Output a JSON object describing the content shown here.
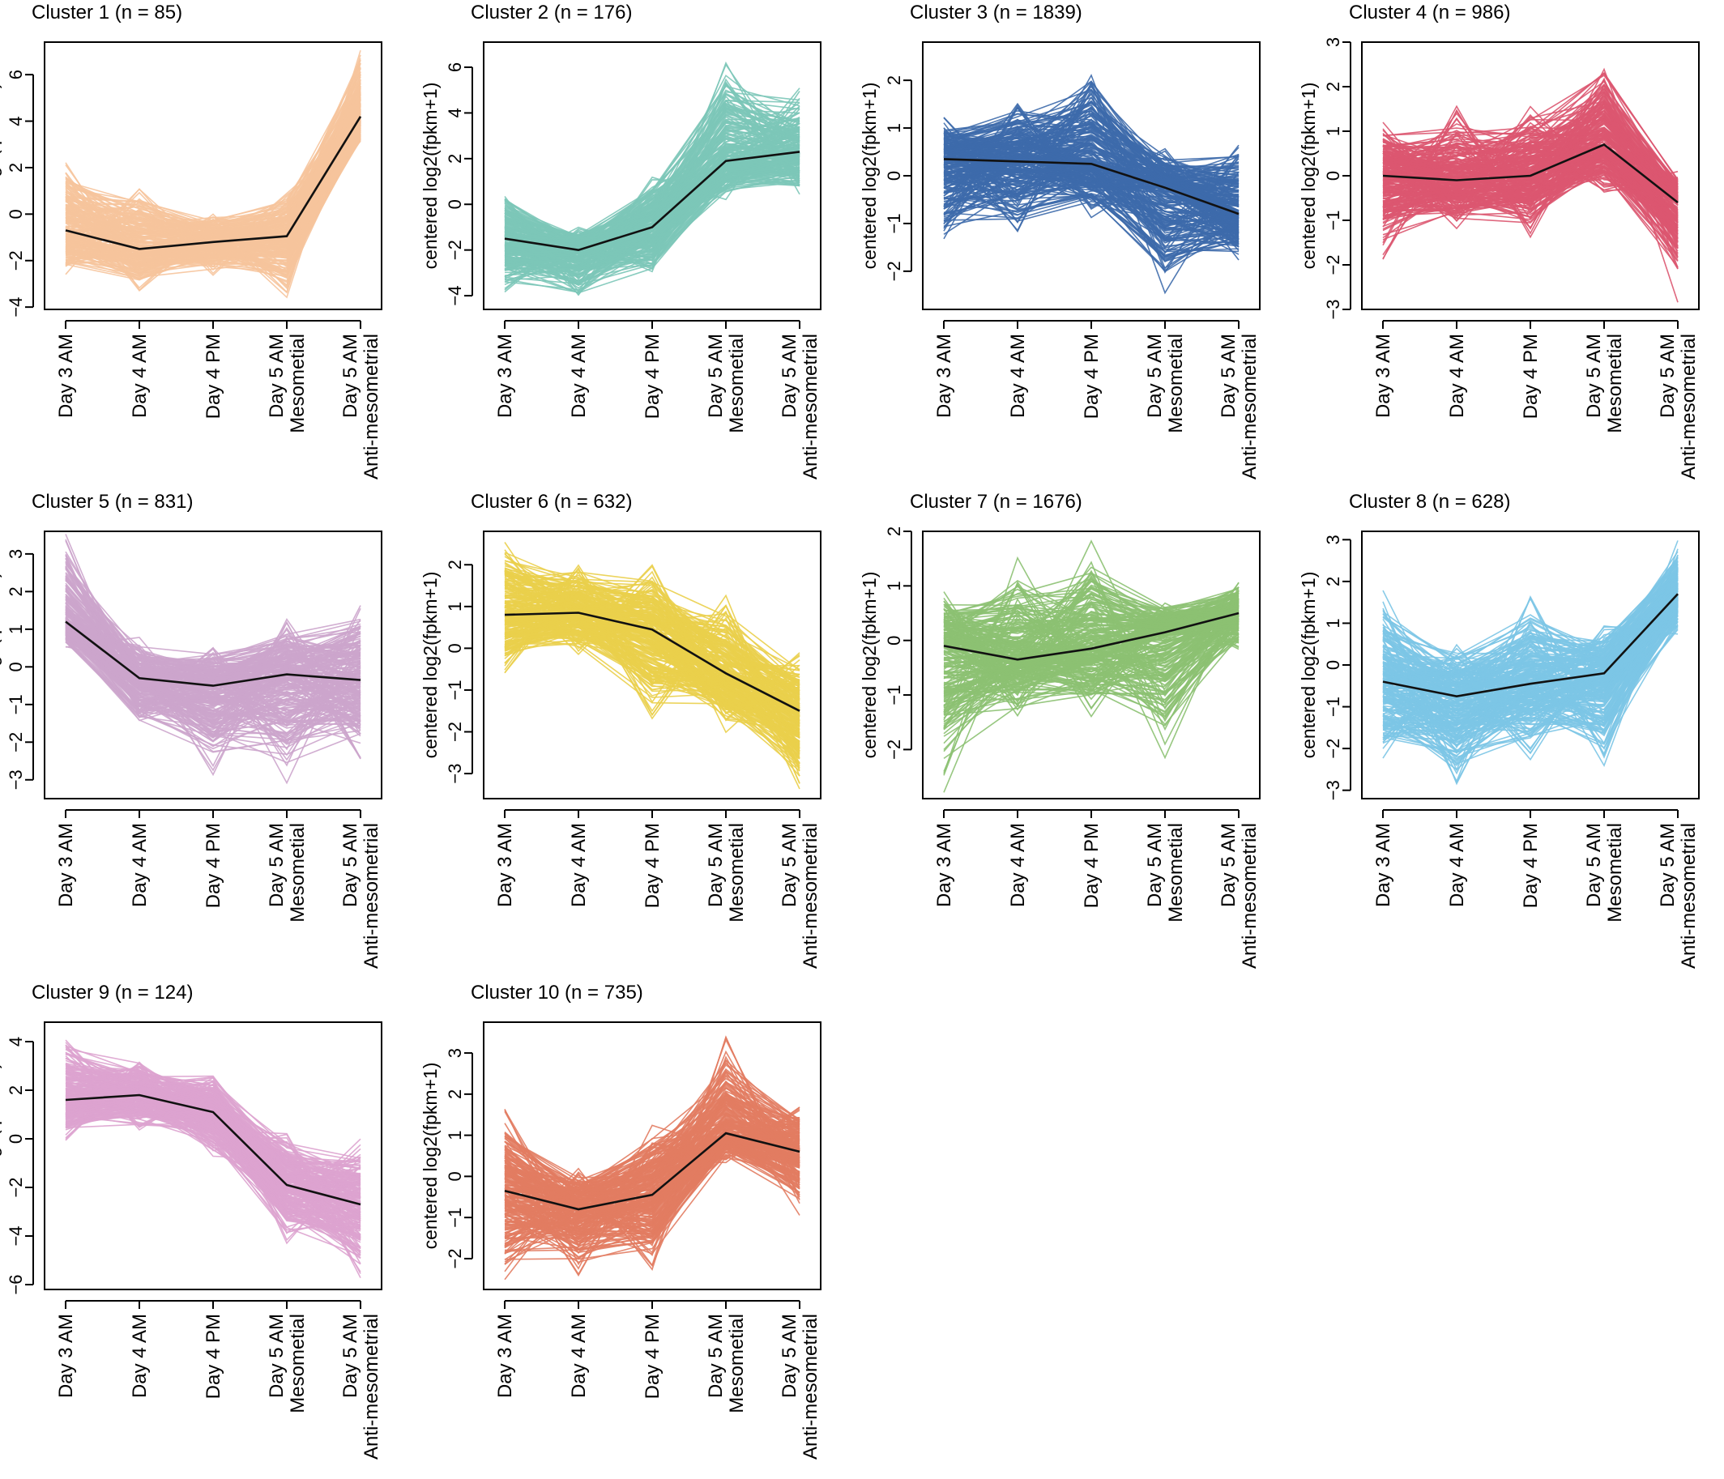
{
  "figure": {
    "x_tick_lines": [
      [
        "Day 3 AM"
      ],
      [
        "Day 4 AM"
      ],
      [
        "Day 4 PM"
      ],
      [
        "Day 5 AM",
        "Mesometial"
      ],
      [
        "Day 5 AM",
        "Anti-mesometrial"
      ]
    ],
    "ylabel": "centered log2(fpkm+1)",
    "mean_line_color": "#111111"
  },
  "chart_data": [
    {
      "type": "line",
      "title": "Cluster 1 (n = 85)",
      "color": "#F6C49C",
      "categories": [
        "Day 3 AM",
        "Day 4 AM",
        "Day 4 PM",
        "Day 5 AM Mesometial",
        "Day 5 AM Anti-mesometrial"
      ],
      "ylabel": "centered log2(fpkm+1)",
      "ylim": [
        -4.1,
        7.4
      ],
      "yticks": [
        -4,
        -2,
        0,
        2,
        4,
        6
      ],
      "mean": [
        -0.7,
        -1.5,
        -1.2,
        -0.95,
        4.2
      ],
      "envelope_low": [
        -2.6,
        -3.3,
        -2.7,
        -3.6,
        2.8
      ],
      "envelope_high": [
        2.6,
        1.4,
        0.2,
        1.1,
        7.4
      ]
    },
    {
      "type": "line",
      "title": "Cluster 2 (n = 176)",
      "color": "#7CC7B8",
      "categories": [
        "Day 3 AM",
        "Day 4 AM",
        "Day 4 PM",
        "Day 5 AM Mesometial",
        "Day 5 AM Anti-mesometrial"
      ],
      "ylabel": "centered log2(fpkm+1)",
      "ylim": [
        -4.6,
        7.1
      ],
      "yticks": [
        -4,
        -2,
        0,
        2,
        4,
        6
      ],
      "mean": [
        -1.5,
        -2.0,
        -1.0,
        1.9,
        2.3
      ],
      "envelope_low": [
        -4.2,
        -4.5,
        -3.4,
        0.1,
        0.2
      ],
      "envelope_high": [
        0.9,
        -1.0,
        1.5,
        6.7,
        5.2
      ]
    },
    {
      "type": "line",
      "title": "Cluster 3 (n = 1839)",
      "color": "#3D6AAB",
      "categories": [
        "Day 3 AM",
        "Day 4 AM",
        "Day 4 PM",
        "Day 5 AM Mesometial",
        "Day 5 AM Anti-mesometrial"
      ],
      "ylabel": "centered log2(fpkm+1)",
      "ylim": [
        -2.8,
        2.8
      ],
      "yticks": [
        -2,
        -1,
        0,
        1,
        2
      ],
      "mean": [
        0.35,
        0.3,
        0.25,
        -0.25,
        -0.8
      ],
      "envelope_low": [
        -1.7,
        -1.3,
        -0.9,
        -2.5,
        -1.9
      ],
      "envelope_high": [
        1.25,
        1.7,
        2.55,
        0.6,
        0.8
      ]
    },
    {
      "type": "line",
      "title": "Cluster 4 (n = 986)",
      "color": "#DC5670",
      "categories": [
        "Day 3 AM",
        "Day 4 AM",
        "Day 4 PM",
        "Day 5 AM Mesometial",
        "Day 5 AM Anti-mesometrial"
      ],
      "ylabel": "centered log2(fpkm+1)",
      "ylim": [
        -3.0,
        3.0
      ],
      "yticks": [
        -3,
        -2,
        -1,
        0,
        1,
        2,
        3
      ],
      "mean": [
        0.0,
        -0.1,
        0.0,
        0.7,
        -0.6
      ],
      "envelope_low": [
        -1.9,
        -1.2,
        -1.4,
        -0.4,
        -2.85
      ],
      "envelope_high": [
        1.3,
        1.6,
        1.7,
        2.85,
        0.1
      ]
    },
    {
      "type": "line",
      "title": "Cluster 5 (n = 831)",
      "color": "#CCA5CC",
      "categories": [
        "Day 3 AM",
        "Day 4 AM",
        "Day 4 PM",
        "Day 5 AM Mesometial",
        "Day 5 AM Anti-mesometrial"
      ],
      "ylabel": "centered log2(fpkm+1)",
      "ylim": [
        -3.5,
        3.6
      ],
      "yticks": [
        -3,
        -2,
        -1,
        0,
        1,
        2,
        3
      ],
      "mean": [
        1.2,
        -0.3,
        -0.5,
        -0.2,
        -0.35
      ],
      "envelope_low": [
        0.4,
        -1.9,
        -3.0,
        -3.2,
        -2.5
      ],
      "envelope_high": [
        3.6,
        0.8,
        0.6,
        1.3,
        1.8
      ]
    },
    {
      "type": "line",
      "title": "Cluster 6 (n = 632)",
      "color": "#EACF4B",
      "categories": [
        "Day 3 AM",
        "Day 4 AM",
        "Day 4 PM",
        "Day 5 AM Mesometial",
        "Day 5 AM Anti-mesometrial"
      ],
      "ylabel": "centered log2(fpkm+1)",
      "ylim": [
        -3.6,
        2.8
      ],
      "yticks": [
        -3,
        -2,
        -1,
        0,
        1,
        2
      ],
      "mean": [
        0.8,
        0.85,
        0.45,
        -0.6,
        -1.5
      ],
      "envelope_low": [
        -0.6,
        -0.2,
        -1.8,
        -2.1,
        -3.5
      ],
      "envelope_high": [
        2.75,
        2.1,
        2.0,
        1.3,
        -0.1
      ]
    },
    {
      "type": "line",
      "title": "Cluster 7 (n = 1676)",
      "color": "#8CC172",
      "categories": [
        "Day 3 AM",
        "Day 4 AM",
        "Day 4 PM",
        "Day 5 AM Mesometial",
        "Day 5 AM Anti-mesometrial"
      ],
      "ylabel": "centered log2(fpkm+1)",
      "ylim": [
        -2.9,
        2.0
      ],
      "yticks": [
        -2,
        -1,
        0,
        1,
        2
      ],
      "mean": [
        -0.1,
        -0.35,
        -0.15,
        0.15,
        0.5
      ],
      "envelope_low": [
        -2.85,
        -1.5,
        -1.4,
        -2.3,
        -0.2
      ],
      "envelope_high": [
        0.9,
        1.55,
        1.85,
        0.75,
        1.15
      ]
    },
    {
      "type": "line",
      "title": "Cluster 8 (n = 628)",
      "color": "#7CC5E6",
      "categories": [
        "Day 3 AM",
        "Day 4 AM",
        "Day 4 PM",
        "Day 5 AM Mesometial",
        "Day 5 AM Anti-mesometrial"
      ],
      "ylabel": "centered log2(fpkm+1)",
      "ylim": [
        -3.2,
        3.2
      ],
      "yticks": [
        -3,
        -2,
        -1,
        0,
        1,
        2,
        3
      ],
      "mean": [
        -0.4,
        -0.75,
        -0.45,
        -0.2,
        1.7
      ],
      "envelope_low": [
        -2.3,
        -3.0,
        -2.3,
        -2.5,
        0.6
      ],
      "envelope_high": [
        1.8,
        0.6,
        1.7,
        1.0,
        3.0
      ]
    },
    {
      "type": "line",
      "title": "Cluster 9 (n = 124)",
      "color": "#DDA3CF",
      "categories": [
        "Day 3 AM",
        "Day 4 AM",
        "Day 4 PM",
        "Day 5 AM Mesometial",
        "Day 5 AM Anti-mesometrial"
      ],
      "ylabel": "centered log2(fpkm+1)",
      "ylim": [
        -6.2,
        4.8
      ],
      "yticks": [
        -6,
        -4,
        -2,
        0,
        2,
        4
      ],
      "mean": [
        1.6,
        1.8,
        1.1,
        -1.9,
        -2.7
      ],
      "envelope_low": [
        -0.1,
        0.2,
        -0.9,
        -4.4,
        -6.0
      ],
      "envelope_high": [
        4.6,
        3.5,
        3.0,
        0.3,
        0.1
      ]
    },
    {
      "type": "line",
      "title": "Cluster 10 (n = 735)",
      "color": "#E27C62",
      "categories": [
        "Day 3 AM",
        "Day 4 AM",
        "Day 4 PM",
        "Day 5 AM Mesometial",
        "Day 5 AM Anti-mesometrial"
      ],
      "ylabel": "centered log2(fpkm+1)",
      "ylim": [
        -2.75,
        3.75
      ],
      "yticks": [
        -2,
        -1,
        0,
        1,
        2,
        3
      ],
      "mean": [
        -0.35,
        -0.8,
        -0.45,
        1.05,
        0.6
      ],
      "envelope_low": [
        -2.65,
        -2.45,
        -2.3,
        0.3,
        -0.95
      ],
      "envelope_high": [
        1.7,
        0.2,
        1.4,
        3.4,
        1.75
      ]
    }
  ]
}
